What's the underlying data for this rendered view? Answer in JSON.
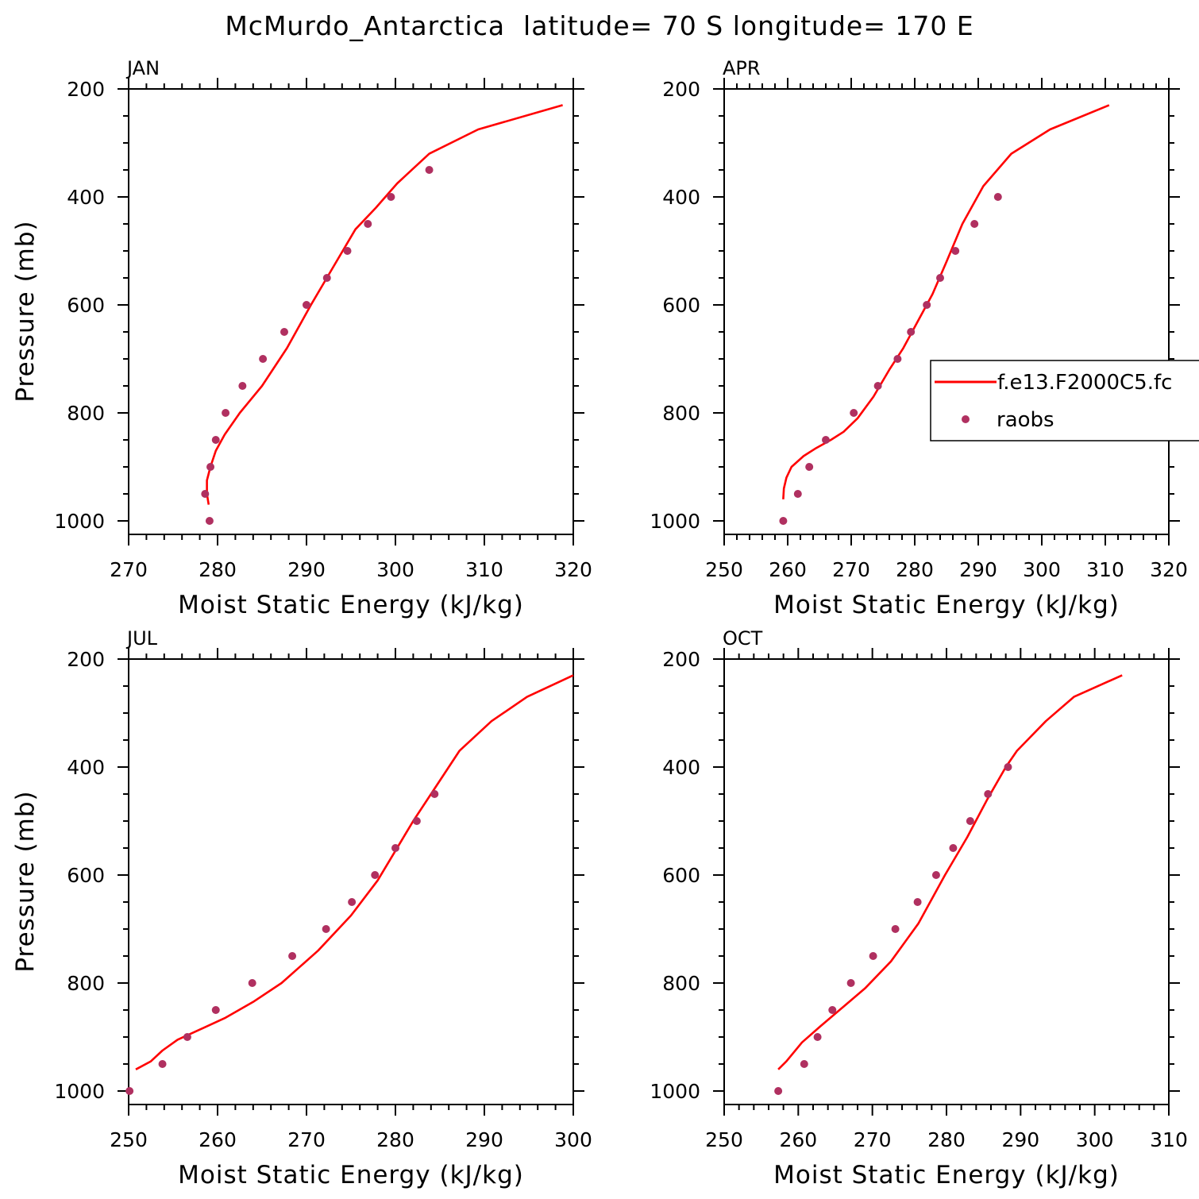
{
  "figure": {
    "title": "McMurdo_Antarctica  latitude= 70 S longitude= 170 E"
  },
  "colors": {
    "model": "#ff0000",
    "obs": "#b03060",
    "axis": "#000000"
  },
  "legend": {
    "model_label": "f.e13.F2000C5.fc",
    "obs_label": "raobs"
  },
  "chart_data": [
    {
      "type": "scatter",
      "panel": "JAN",
      "title": "JAN",
      "xlabel": "Moist Static Energy (kJ/kg)",
      "ylabel": "Pressure (mb)",
      "xlim": [
        270,
        320
      ],
      "ylim": [
        200,
        1025
      ],
      "y_inverted": true,
      "xticks": [
        270,
        280,
        290,
        300,
        310,
        320
      ],
      "yticks": [
        200,
        400,
        600,
        800,
        1000
      ],
      "series": [
        {
          "name": "f.e13.F2000C5.fc",
          "type": "line",
          "x": [
            279,
            278.8,
            278.8,
            279.2,
            279.8,
            280.8,
            282.5,
            285,
            287.8,
            290.5,
            293,
            295.5,
            297.8,
            300.2,
            303.8,
            309.3,
            318.8
          ],
          "y": [
            970,
            950,
            925,
            900,
            870,
            840,
            800,
            750,
            680,
            600,
            530,
            460,
            420,
            375,
            320,
            275,
            230
          ]
        },
        {
          "name": "raobs",
          "type": "scatter",
          "x": [
            279.1,
            278.6,
            279.2,
            279.8,
            280.9,
            282.8,
            285.1,
            287.5,
            290,
            292.3,
            294.6,
            296.9,
            299.5,
            303.8
          ],
          "y": [
            1000,
            950,
            900,
            850,
            800,
            750,
            700,
            650,
            600,
            550,
            500,
            450,
            400,
            350
          ]
        }
      ]
    },
    {
      "type": "scatter",
      "panel": "APR",
      "title": "APR",
      "xlabel": "Moist Static Energy (kJ/kg)",
      "ylabel": "Pressure (mb)",
      "xlim": [
        250,
        320
      ],
      "ylim": [
        200,
        1025
      ],
      "y_inverted": true,
      "xticks": [
        250,
        260,
        270,
        280,
        290,
        300,
        310,
        320
      ],
      "yticks": [
        200,
        400,
        600,
        800,
        1000
      ],
      "series": [
        {
          "name": "f.e13.F2000C5.fc",
          "type": "line",
          "x": [
            259.3,
            259.4,
            259.8,
            260.6,
            262.5,
            264.5,
            266.8,
            268.8,
            271,
            273.5,
            276,
            278.2,
            280.5,
            282.8,
            285,
            287.5,
            290.8,
            295.2,
            301.3,
            310.6
          ],
          "y": [
            960,
            940,
            920,
            900,
            880,
            865,
            850,
            835,
            810,
            770,
            720,
            680,
            630,
            580,
            520,
            450,
            380,
            320,
            275,
            230
          ]
        },
        {
          "name": "raobs",
          "type": "scatter",
          "x": [
            259.3,
            261.6,
            263.4,
            266,
            270.4,
            274.2,
            277.3,
            279.4,
            281.9,
            284,
            286.4,
            289.4,
            293.1
          ],
          "y": [
            1000,
            950,
            900,
            850,
            800,
            750,
            700,
            650,
            600,
            550,
            500,
            450,
            400
          ]
        }
      ]
    },
    {
      "type": "scatter",
      "panel": "JUL",
      "title": "JUL",
      "xlabel": "Moist Static Energy (kJ/kg)",
      "ylabel": "Pressure (mb)",
      "xlim": [
        250,
        300
      ],
      "ylim": [
        200,
        1025
      ],
      "y_inverted": true,
      "xticks": [
        250,
        260,
        270,
        280,
        290,
        300
      ],
      "yticks": [
        200,
        400,
        600,
        800,
        1000
      ],
      "series": [
        {
          "name": "f.e13.F2000C5.fc",
          "type": "line",
          "x": [
            250.8,
            252.5,
            253.8,
            255.5,
            257.5,
            260.8,
            264,
            267.2,
            271.3,
            275,
            278,
            280,
            282,
            284,
            287.2,
            290.8,
            294.8,
            300
          ],
          "y": [
            960,
            945,
            925,
            905,
            890,
            865,
            835,
            800,
            740,
            675,
            610,
            555,
            500,
            450,
            370,
            315,
            270,
            230
          ]
        },
        {
          "name": "raobs",
          "type": "scatter",
          "x": [
            250.1,
            253.8,
            256.6,
            259.8,
            263.9,
            268.4,
            272.2,
            275.1,
            277.7,
            280,
            282.4,
            284.4
          ],
          "y": [
            1000,
            950,
            900,
            850,
            800,
            750,
            700,
            650,
            600,
            550,
            500,
            450
          ]
        }
      ]
    },
    {
      "type": "scatter",
      "panel": "OCT",
      "title": "OCT",
      "xlabel": "Moist Static Energy (kJ/kg)",
      "ylabel": "Pressure (mb)",
      "xlim": [
        250,
        310
      ],
      "ylim": [
        200,
        1025
      ],
      "y_inverted": true,
      "xticks": [
        250,
        260,
        270,
        280,
        290,
        300,
        310
      ],
      "yticks": [
        200,
        400,
        600,
        800,
        1000
      ],
      "series": [
        {
          "name": "f.e13.F2000C5.fc",
          "type": "line",
          "x": [
            257.3,
            258.4,
            260.5,
            263,
            266,
            269,
            272.5,
            276.2,
            279.8,
            282.8,
            285.5,
            288,
            289.5,
            293.4,
            297.2,
            303.7
          ],
          "y": [
            960,
            945,
            910,
            880,
            845,
            810,
            760,
            690,
            600,
            530,
            460,
            400,
            370,
            315,
            270,
            230
          ]
        },
        {
          "name": "raobs",
          "type": "scatter",
          "x": [
            257.3,
            260.8,
            262.6,
            264.6,
            267.1,
            270.1,
            273.1,
            276.1,
            278.6,
            280.9,
            283.2,
            285.6,
            288.3
          ],
          "y": [
            1000,
            950,
            900,
            850,
            800,
            750,
            700,
            650,
            600,
            550,
            500,
            450,
            400
          ]
        }
      ]
    }
  ]
}
